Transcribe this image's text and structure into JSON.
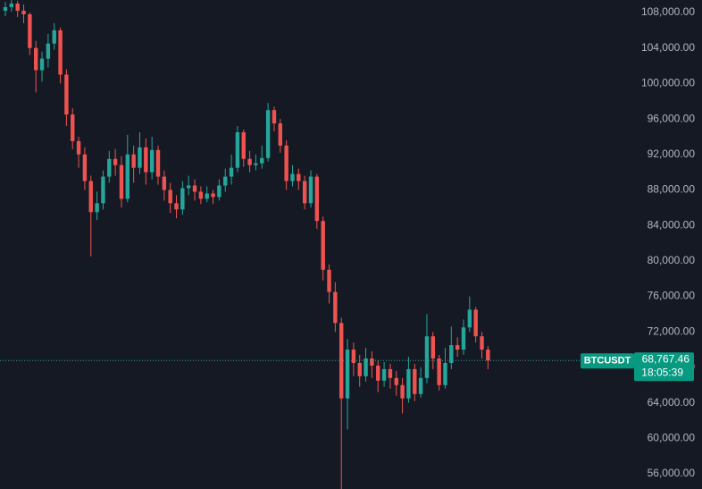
{
  "chart_data": {
    "type": "candlestick",
    "up_color": "#26a69a",
    "down_color": "#ef5350",
    "ylim": [
      54287,
      109411
    ],
    "yticks": [
      {
        "value": 56000,
        "label": "56,000.00"
      },
      {
        "value": 60000,
        "label": "60,000.00"
      },
      {
        "value": 64000,
        "label": "64,000.00"
      },
      {
        "value": 68000,
        "label": "68,000.00"
      },
      {
        "value": 72000,
        "label": "72,000.00"
      },
      {
        "value": 76000,
        "label": "76,000.00"
      },
      {
        "value": 80000,
        "label": "80,000.00"
      },
      {
        "value": 84000,
        "label": "84,000.00"
      },
      {
        "value": 88000,
        "label": "88,000.00"
      },
      {
        "value": 92000,
        "label": "92,000.00"
      },
      {
        "value": 96000,
        "label": "96,000.00"
      },
      {
        "value": 100000,
        "label": "100,000.00"
      },
      {
        "value": 104000,
        "label": "104,000.00"
      },
      {
        "value": 108000,
        "label": "108,000.00"
      }
    ],
    "symbol": "BTCUSDT",
    "price_line": {
      "value": 68767.46,
      "label": "68,767.46"
    },
    "countdown": "18:05:39",
    "open": [
      108200,
      108600,
      109000,
      108200,
      107800,
      104000,
      101500,
      102800,
      104500,
      106000,
      101000,
      96500,
      93500,
      92000,
      89000,
      85500,
      86500,
      89500,
      91500,
      90800,
      87000,
      92000,
      90500,
      92800,
      90000,
      92500,
      89500,
      88000,
      86500,
      85800,
      88200,
      88500,
      87800,
      87000,
      87600,
      87200,
      88500,
      89500,
      90500,
      94500,
      91500,
      90800,
      91000,
      91600,
      97000,
      95500,
      93000,
      89000,
      89800,
      89000,
      86500,
      89500,
      84500,
      79000,
      76500,
      73000,
      64500,
      70000,
      68500,
      67000,
      69000,
      68200,
      66500,
      67800,
      66800,
      66000,
      64500,
      67800,
      65000,
      66800,
      71500,
      69000,
      66000,
      68500,
      70500,
      70000,
      72500,
      74500,
      71500,
      70000
    ],
    "high": [
      109200,
      109400,
      109300,
      108900,
      108000,
      104800,
      103600,
      105600,
      106800,
      106300,
      101600,
      97200,
      94000,
      92800,
      89600,
      87800,
      90200,
      92400,
      92600,
      91800,
      94200,
      93000,
      94500,
      93800,
      94000,
      93000,
      90200,
      88800,
      87400,
      89000,
      89600,
      89200,
      88400,
      88400,
      88000,
      89200,
      90400,
      92000,
      95200,
      94800,
      92400,
      92000,
      93000,
      97800,
      97400,
      96000,
      93600,
      90800,
      90400,
      89600,
      90200,
      89800,
      85000,
      79600,
      77600,
      73600,
      71200,
      70800,
      69400,
      70200,
      69800,
      68800,
      68600,
      68400,
      67600,
      66800,
      69200,
      68400,
      68000,
      74000,
      72000,
      69400,
      70200,
      72600,
      71400,
      73400,
      76000,
      74800,
      72000,
      70400
    ],
    "low": [
      107600,
      108100,
      107500,
      106800,
      103200,
      99000,
      100200,
      101800,
      103800,
      100000,
      95200,
      92600,
      90500,
      88000,
      80500,
      84600,
      85800,
      88800,
      89600,
      86000,
      86600,
      88800,
      89800,
      88600,
      89200,
      88600,
      86800,
      85400,
      84800,
      85200,
      87400,
      86800,
      86400,
      86600,
      86400,
      86800,
      87800,
      88600,
      90000,
      90600,
      90000,
      90200,
      90400,
      91200,
      94600,
      92200,
      88000,
      88400,
      88000,
      85800,
      86000,
      83600,
      77800,
      75200,
      72000,
      54200,
      61000,
      67000,
      65800,
      66400,
      66800,
      65200,
      65800,
      65600,
      64800,
      62800,
      64000,
      64200,
      64600,
      66200,
      67800,
      65400,
      65600,
      67800,
      69200,
      69400,
      72000,
      70800,
      69000,
      67800
    ],
    "close": [
      108600,
      109000,
      108200,
      107800,
      104000,
      101500,
      102800,
      104500,
      106000,
      101000,
      96500,
      93500,
      92000,
      89000,
      85500,
      86500,
      89500,
      91500,
      90800,
      87000,
      92000,
      90500,
      92800,
      90000,
      92500,
      89500,
      88000,
      86500,
      85800,
      88200,
      88500,
      87800,
      87000,
      87600,
      87200,
      88500,
      89500,
      90500,
      94500,
      91500,
      90800,
      91000,
      91600,
      97000,
      95500,
      93000,
      89000,
      89800,
      89000,
      86500,
      89500,
      84500,
      79000,
      76500,
      73000,
      64500,
      70000,
      68500,
      67000,
      69000,
      68200,
      66500,
      67800,
      66800,
      66000,
      64500,
      67800,
      65000,
      66800,
      71500,
      69000,
      66000,
      68500,
      70500,
      70000,
      72500,
      74500,
      71500,
      70000,
      68767.46
    ]
  }
}
